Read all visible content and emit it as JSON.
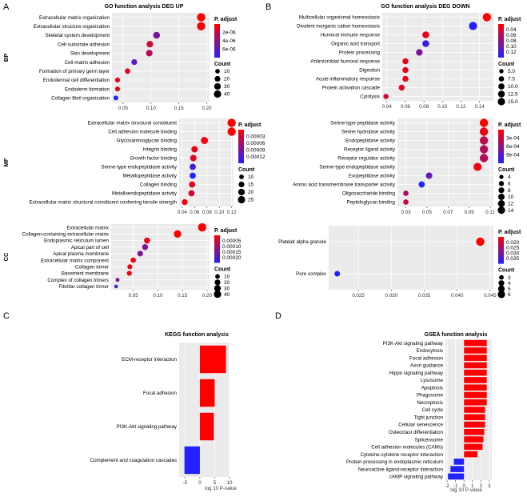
{
  "colors": {
    "high": "#ff0000",
    "low": "#2222ff",
    "panel": "#ebebeb",
    "grid": "#ffffff"
  },
  "panel_labels": [
    "A",
    "B",
    "C",
    "D"
  ],
  "chart_data": [
    {
      "id": "A",
      "type": "scatter",
      "title": "GO function analysis DEG UP",
      "subplots": [
        {
          "side_label": "BP",
          "xlim": [
            0.03,
            0.205
          ],
          "xticks": [
            0.05,
            0.1,
            0.15,
            0.2
          ],
          "xtick_labels": [
            "0.05",
            "0.10",
            "0.15",
            "0.20"
          ],
          "legend": {
            "color_title": "P. adjust",
            "color_labels": [
              "2e-06",
              "4e-06",
              "6e-06"
            ],
            "size_title": "Count",
            "size_labels": [
              "10",
              "20",
              "30",
              "40"
            ]
          },
          "points": [
            {
              "term": "Extracellular matrix organization",
              "x": 0.19,
              "count": 40,
              "p": 0.0
            },
            {
              "term": "Extracellular structure organization",
              "x": 0.19,
              "count": 40,
              "p": 0.0
            },
            {
              "term": "Skeletal system development",
              "x": 0.11,
              "count": 24,
              "p": 0.6
            },
            {
              "term": "Cell-substrate adhesion",
              "x": 0.098,
              "count": 21,
              "p": 0.2
            },
            {
              "term": "Skin development",
              "x": 0.097,
              "count": 21,
              "p": 0.35
            },
            {
              "term": "Cell-matrix adhesion",
              "x": 0.07,
              "count": 15,
              "p": 0.75
            },
            {
              "term": "Formation of primary germ layer",
              "x": 0.058,
              "count": 12,
              "p": 0.15
            },
            {
              "term": "Endodermal cell differentiation",
              "x": 0.04,
              "count": 9,
              "p": 0.1
            },
            {
              "term": "Endoderm formation",
              "x": 0.04,
              "count": 9,
              "p": 0.1
            },
            {
              "term": "Collagen fibril organization",
              "x": 0.037,
              "count": 8,
              "p": 1.0
            }
          ]
        },
        {
          "side_label": "MF",
          "xlim": [
            0.035,
            0.123
          ],
          "xticks": [
            0.04,
            0.06,
            0.08,
            0.1,
            0.12
          ],
          "xtick_labels": [
            "0.04",
            "0.06",
            "0.08",
            "0.10",
            "0.12"
          ],
          "legend": {
            "color_title": "P. adjust",
            "color_labels": [
              "0.00003",
              "0.00006",
              "0.00009",
              "0.00012"
            ],
            "size_title": "Count",
            "size_labels": [
              "10",
              "15",
              "20",
              "25"
            ]
          },
          "points": [
            {
              "term": "Extracellular matrix structural constituent",
              "x": 0.12,
              "count": 26,
              "p": 0.0
            },
            {
              "term": "Cell adhesion molecule binding",
              "x": 0.12,
              "count": 26,
              "p": 0.0
            },
            {
              "term": "Glycosaminoglycan binding",
              "x": 0.076,
              "count": 17,
              "p": 0.05
            },
            {
              "term": "Integrin binding",
              "x": 0.06,
              "count": 13,
              "p": 0.1
            },
            {
              "term": "Growth factor binding",
              "x": 0.058,
              "count": 13,
              "p": 0.15
            },
            {
              "term": "Serine-type endopeptidase activity",
              "x": 0.057,
              "count": 12,
              "p": 0.85
            },
            {
              "term": "Metallopeptidase activity",
              "x": 0.057,
              "count": 12,
              "p": 1.0
            },
            {
              "term": "Collagen binding",
              "x": 0.056,
              "count": 12,
              "p": 0.15
            },
            {
              "term": "Metalloendopeptidase activity",
              "x": 0.055,
              "count": 12,
              "p": 0.2
            },
            {
              "term": "Extracellular matrix structural constituent conferring tensile strength",
              "x": 0.044,
              "count": 10,
              "p": 0.05
            }
          ]
        },
        {
          "side_label": "CC",
          "xlim": [
            0.005,
            0.205
          ],
          "xticks": [
            0.05,
            0.1,
            0.15,
            0.2
          ],
          "xtick_labels": [
            "0.05",
            "0.10",
            "0.15",
            "0.20"
          ],
          "legend": {
            "color_title": "P. adjust",
            "color_labels": [
              "0.00005",
              "0.00010",
              "0.00015",
              "0.00020"
            ],
            "size_title": "Count",
            "size_labels": [
              "10",
              "20",
              "30",
              "40"
            ]
          },
          "points": [
            {
              "term": "Extracellular matrix",
              "x": 0.19,
              "count": 40,
              "p": 0.0
            },
            {
              "term": "Collagen-containing extracellular matrix",
              "x": 0.14,
              "count": 30,
              "p": 0.0
            },
            {
              "term": "Endoplasmic reticulum lumen",
              "x": 0.078,
              "count": 17,
              "p": 0.1
            },
            {
              "term": "Apical part of cell",
              "x": 0.074,
              "count": 16,
              "p": 0.55
            },
            {
              "term": "Apical plasma membrane",
              "x": 0.064,
              "count": 14,
              "p": 0.6
            },
            {
              "term": "Extracellular matrix component",
              "x": 0.05,
              "count": 11,
              "p": 0.05
            },
            {
              "term": "Collagen trimer",
              "x": 0.043,
              "count": 9,
              "p": 0.05
            },
            {
              "term": "Basement membrane",
              "x": 0.042,
              "count": 9,
              "p": 0.05
            },
            {
              "term": "Complex of collagen trimers",
              "x": 0.018,
              "count": 4,
              "p": 0.6
            },
            {
              "term": "Fibrillar collagen trimer",
              "x": 0.015,
              "count": 3,
              "p": 0.9
            }
          ]
        }
      ]
    },
    {
      "id": "B",
      "type": "scatter",
      "title": "GO function analysis DEG DOWN",
      "subplots": [
        {
          "side_label": "",
          "xlim": [
            0.035,
            0.155
          ],
          "xticks": [
            0.04,
            0.06,
            0.08,
            0.1,
            0.12,
            0.14
          ],
          "xtick_labels": [
            "0.04",
            "0.06",
            "0.08",
            "0.10",
            "0.12",
            "0.14"
          ],
          "legend": {
            "color_title": "P. adjust",
            "color_labels": [
              "0.04",
              "0.06",
              "0.08",
              "0.10",
              "0.12"
            ],
            "size_title": "Count",
            "size_labels": [
              "5.0",
              "7.5",
              "10.0",
              "12.5",
              "15.0"
            ]
          },
          "points": [
            {
              "term": "Multicellular organismal homeostasis",
              "x": 0.148,
              "count": 15,
              "p": 0.0
            },
            {
              "term": "Divalent inorganic cation homeostasis",
              "x": 0.133,
              "count": 14,
              "p": 1.0
            },
            {
              "term": "Humoral immune response",
              "x": 0.082,
              "count": 9,
              "p": 0.1
            },
            {
              "term": "Organic acid transport",
              "x": 0.082,
              "count": 9,
              "p": 0.9
            },
            {
              "term": "Protein processing",
              "x": 0.075,
              "count": 8,
              "p": 0.6
            },
            {
              "term": "Antimicrobial humoral response",
              "x": 0.06,
              "count": 6,
              "p": 0.1
            },
            {
              "term": "Digestion",
              "x": 0.06,
              "count": 6,
              "p": 0.1
            },
            {
              "term": "Acute inflammatory response",
              "x": 0.06,
              "count": 6,
              "p": 0.1
            },
            {
              "term": "Protein activation cascade",
              "x": 0.056,
              "count": 6,
              "p": 0.15
            },
            {
              "term": "Cytolysis",
              "x": 0.039,
              "count": 4,
              "p": 0.2
            }
          ]
        },
        {
          "side_label": "",
          "xlim": [
            0.022,
            0.113
          ],
          "xticks": [
            0.03,
            0.05,
            0.07,
            0.09,
            0.11
          ],
          "xtick_labels": [
            "0.03",
            "0.05",
            "0.07",
            "0.09",
            "0.11"
          ],
          "legend": {
            "color_title": "P. adjust",
            "color_labels": [
              "3e-04",
              "6e-04",
              "9e-04"
            ],
            "size_title": "Count",
            "size_labels": [
              "4",
              "6",
              "8",
              "10",
              "12",
              "14"
            ]
          },
          "points": [
            {
              "term": "Serine-type peptidase activity",
              "x": 0.104,
              "count": 14,
              "p": 0.0
            },
            {
              "term": "Serine hydrolase activity",
              "x": 0.104,
              "count": 14,
              "p": 0.1
            },
            {
              "term": "Endopeptidase activity",
              "x": 0.104,
              "count": 14,
              "p": 0.3
            },
            {
              "term": "Receptor ligand activity",
              "x": 0.104,
              "count": 14,
              "p": 0.35
            },
            {
              "term": "Receptor regulator activity",
              "x": 0.104,
              "count": 14,
              "p": 0.35
            },
            {
              "term": "Serine-type endopeptidase activity",
              "x": 0.098,
              "count": 13,
              "p": 0.05
            },
            {
              "term": "Exopeptidase activity",
              "x": 0.052,
              "count": 7,
              "p": 0.7
            },
            {
              "term": "Amino acid transmembrane transporter activity",
              "x": 0.045,
              "count": 6,
              "p": 1.0
            },
            {
              "term": "Oligosaccharide binding",
              "x": 0.03,
              "count": 4,
              "p": 0.4
            },
            {
              "term": "Peptidoglycan binding",
              "x": 0.03,
              "count": 4,
              "p": 0.3
            }
          ]
        },
        {
          "side_label": "",
          "xlim": [
            0.0205,
            0.0455
          ],
          "xticks": [
            0.025,
            0.03,
            0.035,
            0.04,
            0.045
          ],
          "xtick_labels": [
            "0.025",
            "0.030",
            "0.035",
            "0.040",
            "0.045"
          ],
          "legend": {
            "color_title": "P. adjust",
            "color_labels": [
              "0.020",
              "0.025",
              "0.030",
              "0.035"
            ],
            "size_title": "Count",
            "size_labels": [
              "3",
              "4",
              "5",
              "6"
            ]
          },
          "points": [
            {
              "term": "Platelet alpha granule",
              "x": 0.0435,
              "count": 6,
              "p": 0.0
            },
            {
              "term": "Pore complex",
              "x": 0.0218,
              "count": 2,
              "p": 1.0
            }
          ]
        }
      ]
    },
    {
      "id": "C",
      "type": "bar",
      "orientation": "horizontal",
      "title": "KEGG function analysis",
      "xlabel": "log 10 P-value",
      "xlim": [
        -7,
        10
      ],
      "xticks": [
        -5,
        0,
        5,
        10
      ],
      "xtick_labels": [
        "-5",
        "0",
        "5",
        "10"
      ],
      "categories": [
        "ECM-receptor interaction",
        "Focal adhesion",
        "PI3K-Akt signaling pathway",
        "Complement and coagulation cascades"
      ],
      "values": [
        8.8,
        5.0,
        4.7,
        -5.2
      ]
    },
    {
      "id": "D",
      "type": "bar",
      "orientation": "horizontal",
      "title": "GSEA function analysis",
      "xlabel": "log 10 P-value",
      "xlim": [
        -2.2,
        3.3
      ],
      "xticks": [
        -2,
        -1,
        0,
        1,
        2,
        3
      ],
      "xtick_labels": [
        "-2",
        "-1",
        "0",
        "1",
        "2",
        "3"
      ],
      "categories": [
        "PI3K-Akt signaling pathway",
        "Endocytosis",
        "Focal adhesion",
        "Axon guidance",
        "Hippo signaling pathway",
        "Lysosome",
        "Apoptosis",
        "Phagosome",
        "Necroptosis",
        "Cell cycle",
        "Tight junction",
        "Cellular senescence",
        "Osteoclast differentiation",
        "Spliceosome",
        "Cell adhesion molecules (CAMs)",
        "Cytokine-cytokine receptor interaction",
        "Protein processing in endoplasmic reticulum",
        "Neuroactive ligand-receptor interaction",
        "cAMP signaling pathway"
      ],
      "values": [
        2.7,
        2.7,
        2.7,
        2.7,
        2.7,
        2.7,
        2.7,
        2.7,
        2.7,
        2.5,
        2.5,
        2.5,
        2.4,
        2.3,
        2.2,
        1.6,
        -1.2,
        -1.6,
        -1.9
      ]
    }
  ]
}
